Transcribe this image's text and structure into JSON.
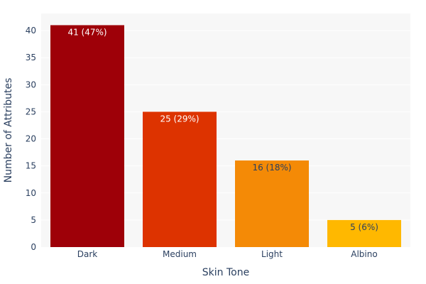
{
  "chart_data": {
    "type": "bar",
    "xlabel": "Skin Tone",
    "ylabel": "Number of Attributes",
    "categories": [
      "Dark",
      "Medium",
      "Light",
      "Albino"
    ],
    "values": [
      41,
      25,
      16,
      5
    ],
    "bar_labels": [
      "41 (47%)",
      "25 (29%)",
      "16 (18%)",
      "5 (6%)"
    ],
    "bar_colors": [
      "#9e0008",
      "#dd3300",
      "#f48a06",
      "#ffb800"
    ],
    "label_colors": [
      "#ffffff",
      "#ffffff",
      "#2a3f5f",
      "#2a3f5f"
    ],
    "ylim": [
      0,
      43.16
    ],
    "yticks": [
      0,
      5,
      10,
      15,
      20,
      25,
      30,
      35,
      40
    ],
    "grid": true,
    "legend": "none",
    "plot_background": "#f7f7f7"
  }
}
